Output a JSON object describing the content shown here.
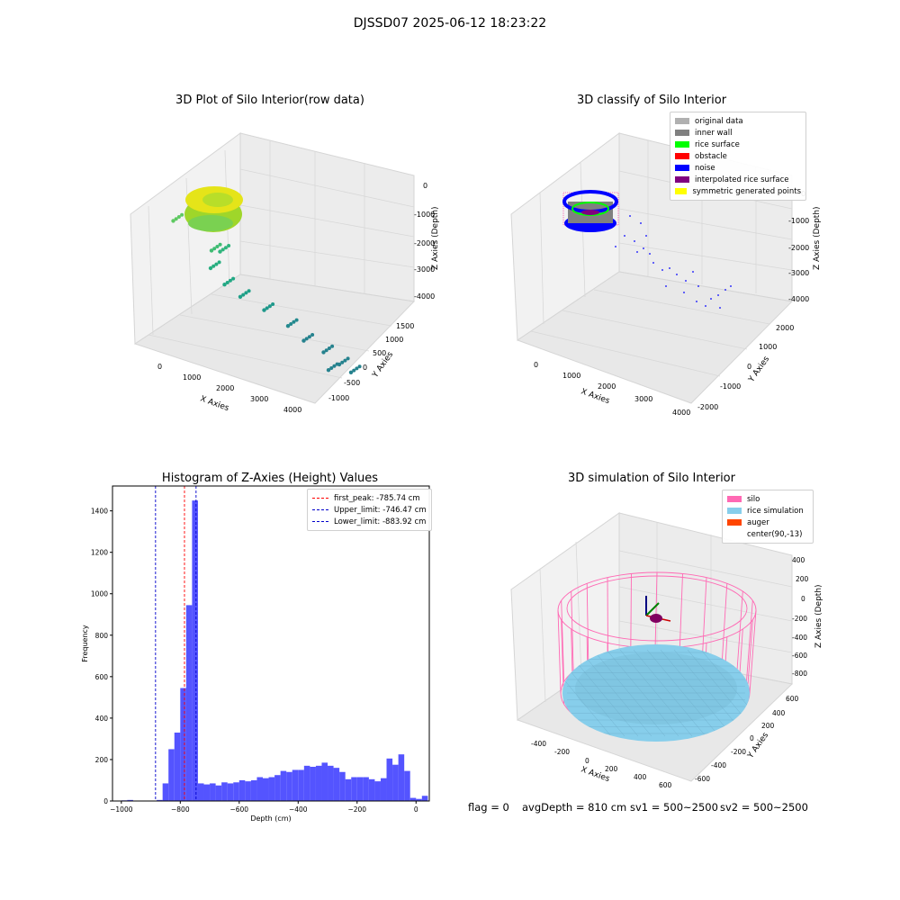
{
  "figure": {
    "suptitle": "DJSSD07 2025-06-12 18:23:22",
    "footer": {
      "flag": "flag = 0",
      "avg_depth": "avgDepth = 810 cm",
      "sv1": "sv1 = 500~2500",
      "sv2": "sv2 = 500~2500"
    }
  },
  "colors": {
    "histogram_bar": "#4b4bff",
    "first_peak": "#ff0000",
    "limits": "#0000cc",
    "silo_wire": "#ff69b4",
    "rice": "#87ceeb"
  },
  "chart_data": [
    {
      "type": "scatter",
      "title": "3D Plot of Silo Interior(row data)",
      "xlabel": "X Axies",
      "ylabel": "Y Axies",
      "zlabel": "Z Axies (Depth)",
      "x_ticks": [
        "0",
        "1000",
        "2000",
        "3000",
        "4000"
      ],
      "y_ticks": [
        "-1000",
        "-500",
        "0",
        "500",
        "1000",
        "1500"
      ],
      "z_ticks": [
        "0",
        "-1000",
        "-2000",
        "-3000",
        "-4000"
      ],
      "colormap": "viridis",
      "points": [
        {
          "x": 300,
          "y": 1300,
          "z": -800
        },
        {
          "x": 1200,
          "y": 1200,
          "z": -1300
        },
        {
          "x": 1500,
          "y": 1400,
          "z": -1200
        },
        {
          "x": 1000,
          "y": 800,
          "z": -2000
        },
        {
          "x": 1300,
          "y": 700,
          "z": -2400
        },
        {
          "x": 1600,
          "y": 500,
          "z": -2600
        },
        {
          "x": 2100,
          "y": 300,
          "z": -2700
        },
        {
          "x": 2600,
          "y": 100,
          "z": -2900
        },
        {
          "x": 2900,
          "y": -100,
          "z": -3200
        },
        {
          "x": 3300,
          "y": -300,
          "z": -3300
        },
        {
          "x": 3600,
          "y": -500,
          "z": -3500
        },
        {
          "x": 3800,
          "y": -700,
          "z": -3600
        },
        {
          "x": 3200,
          "y": -800,
          "z": -3900
        }
      ]
    },
    {
      "type": "scatter",
      "title": "3D classify of Silo Interior",
      "xlabel": "X Axies",
      "ylabel": "Y Axies",
      "zlabel": "Z Axies (Depth)",
      "x_ticks": [
        "0",
        "1000",
        "2000",
        "3000",
        "4000"
      ],
      "y_ticks": [
        "-2000",
        "-1000",
        "0",
        "1000",
        "2000"
      ],
      "z_ticks": [
        "0",
        "-1000",
        "-2000",
        "-3000",
        "-4000"
      ],
      "legend": [
        {
          "label": "original data",
          "color": "#b0b0b0"
        },
        {
          "label": "inner wall",
          "color": "#808080"
        },
        {
          "label": "rice surface",
          "color": "#00ff00"
        },
        {
          "label": "obstacle",
          "color": "#ff0000"
        },
        {
          "label": "noise",
          "color": "#0000ff"
        },
        {
          "label": "interpolated rice surface",
          "color": "#800080"
        },
        {
          "label": "symmetric generated points",
          "color": "#ffff00"
        }
      ]
    },
    {
      "type": "bar",
      "title": "Histogram of Z-Axies (Height) Values",
      "xlabel": "Depth (cm)",
      "ylabel": "Frequency",
      "xlim": [
        -1030,
        45
      ],
      "ylim": [
        0,
        1520
      ],
      "x_ticks": [
        -1000,
        -800,
        -600,
        -400,
        -200,
        0
      ],
      "y_ticks": [
        0,
        200,
        400,
        600,
        800,
        1000,
        1200,
        1400
      ],
      "bin_start": -1000,
      "bin_width": 20,
      "values": [
        3,
        5,
        0,
        0,
        0,
        0,
        5,
        85,
        250,
        330,
        545,
        945,
        1450,
        85,
        80,
        85,
        75,
        90,
        85,
        90,
        100,
        95,
        100,
        115,
        110,
        115,
        125,
        145,
        140,
        150,
        150,
        170,
        165,
        170,
        185,
        170,
        160,
        140,
        105,
        115,
        115,
        115,
        105,
        95,
        110,
        205,
        175,
        225,
        145,
        15,
        10,
        25
      ],
      "vlines": [
        {
          "label": "first_peak: -785.74 cm",
          "x": -785.74,
          "color": "#ff0000"
        },
        {
          "label": "Upper_limit: -746.47 cm",
          "x": -746.47,
          "color": "#0000cc"
        },
        {
          "label": "Lower_limit: -883.92 cm",
          "x": -883.92,
          "color": "#0000cc"
        }
      ]
    },
    {
      "type": "surface",
      "title": "3D simulation of Silo Interior",
      "xlabel": "X Axies",
      "ylabel": "Y Axies",
      "zlabel": "Z Axies (Depth)",
      "x_ticks": [
        "-400",
        "-200",
        "0",
        "200",
        "400",
        "600"
      ],
      "y_ticks": [
        "-600",
        "-400",
        "-200",
        "0",
        "200",
        "400",
        "600"
      ],
      "z_ticks": [
        "400",
        "200",
        "0",
        "-200",
        "-400",
        "-600",
        "-800"
      ],
      "legend": [
        {
          "label": "silo",
          "color": "#ff69b4"
        },
        {
          "label": "rice simulation",
          "color": "#87ceeb"
        },
        {
          "label": "auger",
          "color": "#ff4500"
        },
        {
          "label": "center(90,-13)",
          "color": "transparent"
        }
      ]
    }
  ]
}
